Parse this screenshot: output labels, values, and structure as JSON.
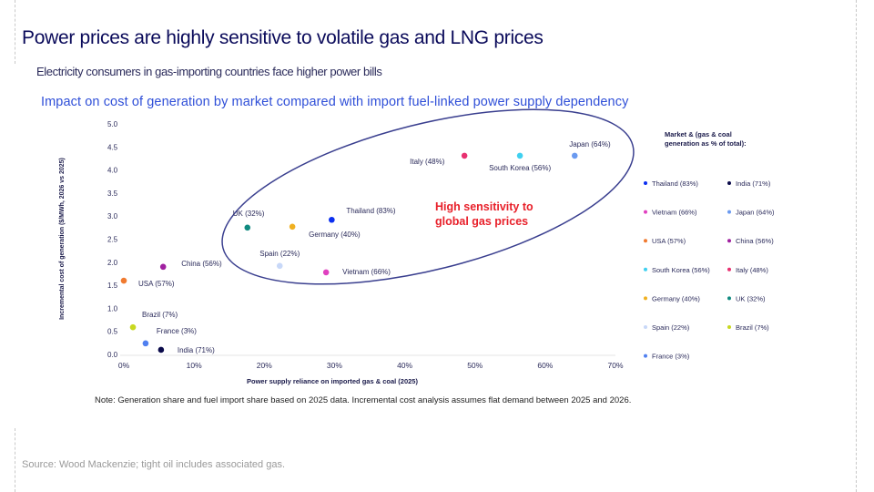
{
  "slide": {
    "title": "Power prices are highly sensitive to volatile gas and LNG prices",
    "subtitle": "Electricity consumers in gas-importing countries face higher power bills",
    "note": "Note: Generation share and fuel import share based on 2025 data. Incremental cost analysis assumes flat demand between 2025 and 2026.",
    "source": "Source: Wood Mackenzie; tight oil includes associated gas."
  },
  "chart_data": {
    "type": "scatter",
    "title": "Impact on cost of generation by market compared with import fuel-linked power supply dependency",
    "xlabel": "Power supply reliance on imported gas & coal (2025)",
    "ylabel": "Incremental cost of generation ($/MWh, 2026 vs 2025)",
    "xlim": [
      0,
      70
    ],
    "ylim": [
      0,
      5
    ],
    "xticks": [
      "0%",
      "10%",
      "20%",
      "30%",
      "40%",
      "50%",
      "60%",
      "70%"
    ],
    "yticks": [
      "0.0",
      "0.5",
      "1.0",
      "1.5",
      "2.0",
      "2.5",
      "3.0",
      "3.5",
      "4.0",
      "4.5",
      "5.0"
    ],
    "legend_title": "Market & (gas & coal generation as % of total):",
    "legend_position": "right",
    "annotation": "High sensitivity to global gas prices",
    "annotation_color": "#e8202a",
    "points": [
      {
        "label": "Thailand (83%)",
        "x": 29.6,
        "y": 2.92,
        "color": "#0b2ff0"
      },
      {
        "label": "India (71%)",
        "x": 5.3,
        "y": 0.1,
        "color": "#0a0a4a"
      },
      {
        "label": "Vietnam (66%)",
        "x": 28.8,
        "y": 1.78,
        "color": "#e040c0"
      },
      {
        "label": "Japan (64%)",
        "x": 64.2,
        "y": 4.31,
        "color": "#6a9af0"
      },
      {
        "label": "USA (57%)",
        "x": 0.0,
        "y": 1.6,
        "color": "#f07a30"
      },
      {
        "label": "China (56%)",
        "x": 5.6,
        "y": 1.9,
        "color": "#a020a0"
      },
      {
        "label": "South Korea (56%)",
        "x": 56.4,
        "y": 4.31,
        "color": "#40d0f0"
      },
      {
        "label": "Italy (48%)",
        "x": 48.5,
        "y": 4.31,
        "color": "#e83070"
      },
      {
        "label": "Germany (40%)",
        "x": 24.0,
        "y": 2.77,
        "color": "#f0b020"
      },
      {
        "label": "UK (32%)",
        "x": 17.6,
        "y": 2.75,
        "color": "#108a80"
      },
      {
        "label": "Spain (22%)",
        "x": 22.2,
        "y": 1.92,
        "color": "#c8d8f8"
      },
      {
        "label": "Brazil (7%)",
        "x": 1.3,
        "y": 0.59,
        "color": "#c8d820"
      },
      {
        "label": "France (3%)",
        "x": 3.1,
        "y": 0.24,
        "color": "#5080f0"
      }
    ]
  }
}
